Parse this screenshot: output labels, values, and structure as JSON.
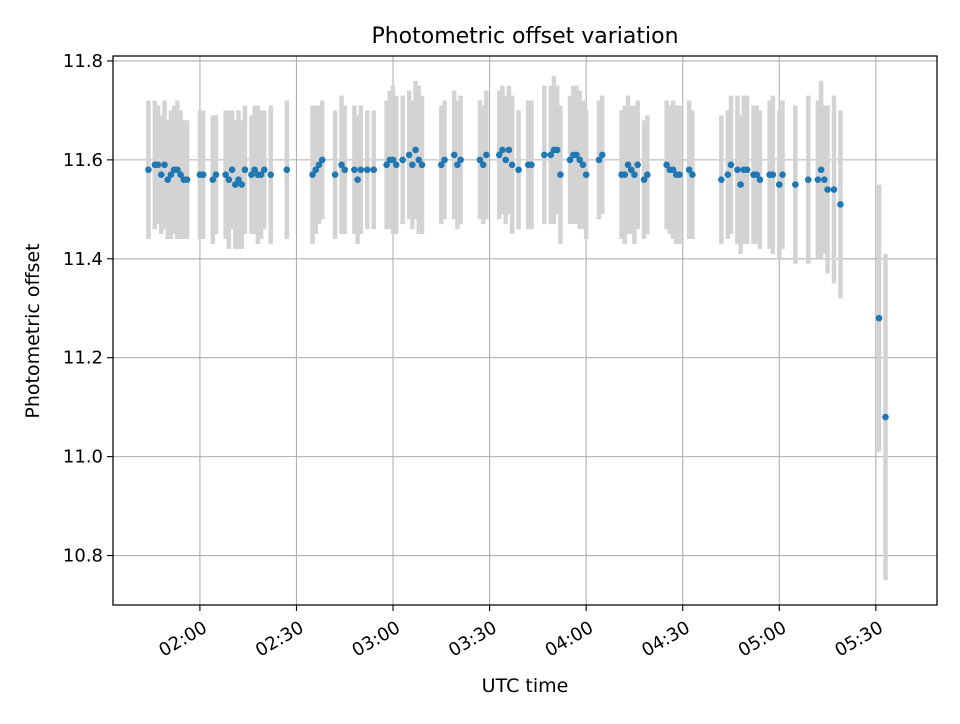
{
  "chart_data": {
    "type": "scatter",
    "title": "Photometric offset variation",
    "xlabel": "UTC time",
    "ylabel": "Photometric offset",
    "xlim": [
      "01:33",
      "05:49"
    ],
    "ylim": [
      10.7,
      11.81
    ],
    "x_ticks": [
      "02:00",
      "02:30",
      "03:00",
      "03:30",
      "04:00",
      "04:30",
      "05:00",
      "05:30"
    ],
    "y_ticks": [
      10.8,
      11.0,
      11.2,
      11.4,
      11.6,
      11.8
    ],
    "grid": true,
    "colors": {
      "points": "#1f77b4",
      "error_bars": "#d3d3d3",
      "grid": "#b0b0b0",
      "axes": "#000000"
    },
    "series": [
      {
        "x": [
          "01:44",
          "01:46",
          "01:47",
          "01:48",
          "01:49",
          "01:50",
          "01:51",
          "01:52",
          "01:53",
          "01:54",
          "01:55",
          "01:56",
          "02:00",
          "02:01",
          "02:04",
          "02:05",
          "02:08",
          "02:09",
          "02:10",
          "02:11",
          "02:12",
          "02:13",
          "02:14",
          "02:16",
          "02:17",
          "02:18",
          "02:19",
          "02:20",
          "02:22",
          "02:27",
          "02:35",
          "02:36",
          "02:37",
          "02:38",
          "02:42",
          "02:44",
          "02:45",
          "02:48",
          "02:49",
          "02:50",
          "02:52",
          "02:54",
          "02:58",
          "02:59",
          "03:00",
          "03:01",
          "03:03",
          "03:05",
          "03:06",
          "03:07",
          "03:08",
          "03:09",
          "03:15",
          "03:16",
          "03:19",
          "03:20",
          "03:21",
          "03:27",
          "03:28",
          "03:29",
          "03:33",
          "03:34",
          "03:35",
          "03:36",
          "03:37",
          "03:39",
          "03:42",
          "03:43",
          "03:47",
          "03:49",
          "03:50",
          "03:51",
          "03:52",
          "03:55",
          "03:56",
          "03:57",
          "03:58",
          "03:59",
          "04:00",
          "04:04",
          "04:05",
          "04:11",
          "04:12",
          "04:13",
          "04:14",
          "04:15",
          "04:16",
          "04:18",
          "04:19",
          "04:25",
          "04:26",
          "04:27",
          "04:28",
          "04:29",
          "04:32",
          "04:33",
          "04:42",
          "04:44",
          "04:45",
          "04:47",
          "04:48",
          "04:49",
          "04:50",
          "04:52",
          "04:53",
          "04:54",
          "04:57",
          "04:58",
          "05:00",
          "05:01",
          "05:05",
          "05:09",
          "05:12",
          "05:13",
          "05:14",
          "05:15",
          "05:17",
          "05:19",
          "05:31",
          "05:33"
        ],
        "y": [
          11.58,
          11.59,
          11.59,
          11.57,
          11.59,
          11.56,
          11.57,
          11.58,
          11.58,
          11.57,
          11.56,
          11.56,
          11.57,
          11.57,
          11.56,
          11.57,
          11.57,
          11.56,
          11.58,
          11.55,
          11.56,
          11.55,
          11.58,
          11.57,
          11.58,
          11.57,
          11.57,
          11.58,
          11.57,
          11.58,
          11.57,
          11.58,
          11.59,
          11.6,
          11.57,
          11.59,
          11.58,
          11.58,
          11.56,
          11.58,
          11.58,
          11.58,
          11.59,
          11.6,
          11.6,
          11.59,
          11.6,
          11.61,
          11.59,
          11.62,
          11.6,
          11.59,
          11.59,
          11.6,
          11.61,
          11.59,
          11.6,
          11.6,
          11.59,
          11.61,
          11.61,
          11.62,
          11.6,
          11.62,
          11.59,
          11.58,
          11.59,
          11.59,
          11.61,
          11.61,
          11.62,
          11.62,
          11.57,
          11.6,
          11.61,
          11.61,
          11.6,
          11.59,
          11.57,
          11.6,
          11.61,
          11.57,
          11.57,
          11.59,
          11.58,
          11.57,
          11.59,
          11.56,
          11.57,
          11.59,
          11.58,
          11.58,
          11.57,
          11.57,
          11.58,
          11.57,
          11.56,
          11.57,
          11.59,
          11.58,
          11.55,
          11.58,
          11.58,
          11.57,
          11.57,
          11.56,
          11.57,
          11.57,
          11.55,
          11.57,
          11.55,
          11.56,
          11.56,
          11.58,
          11.56,
          11.54,
          11.54,
          11.51,
          11.28,
          11.08
        ],
        "error": [
          0.14,
          0.13,
          0.12,
          0.12,
          0.13,
          0.12,
          0.13,
          0.13,
          0.14,
          0.13,
          0.12,
          0.12,
          0.13,
          0.13,
          0.13,
          0.12,
          0.13,
          0.14,
          0.12,
          0.13,
          0.14,
          0.13,
          0.13,
          0.12,
          0.13,
          0.14,
          0.13,
          0.12,
          0.14,
          0.14,
          0.14,
          0.13,
          0.12,
          0.12,
          0.13,
          0.14,
          0.13,
          0.13,
          0.13,
          0.13,
          0.12,
          0.12,
          0.13,
          0.14,
          0.15,
          0.14,
          0.13,
          0.13,
          0.13,
          0.14,
          0.15,
          0.14,
          0.12,
          0.12,
          0.13,
          0.13,
          0.13,
          0.12,
          0.12,
          0.13,
          0.13,
          0.13,
          0.13,
          0.13,
          0.14,
          0.12,
          0.13,
          0.13,
          0.14,
          0.14,
          0.15,
          0.13,
          0.14,
          0.13,
          0.14,
          0.14,
          0.14,
          0.13,
          0.13,
          0.12,
          0.12,
          0.13,
          0.14,
          0.14,
          0.13,
          0.14,
          0.13,
          0.12,
          0.12,
          0.13,
          0.13,
          0.14,
          0.14,
          0.14,
          0.14,
          0.13,
          0.13,
          0.13,
          0.14,
          0.15,
          0.14,
          0.15,
          0.15,
          0.14,
          0.14,
          0.14,
          0.15,
          0.16,
          0.15,
          0.15,
          0.16,
          0.17,
          0.16,
          0.18,
          0.15,
          0.17,
          0.19,
          0.19,
          0.27,
          0.33
        ]
      }
    ]
  }
}
